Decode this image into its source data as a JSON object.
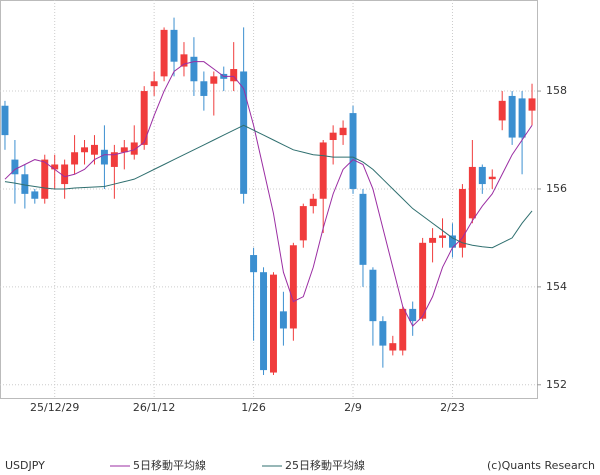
{
  "chart_data": {
    "type": "candlestick",
    "symbol": "USDJPY",
    "credit": "(c)Quants Research",
    "categories": [
      null,
      null,
      null,
      null,
      null,
      "25/12/29",
      null,
      null,
      null,
      null,
      null,
      null,
      null,
      null,
      null,
      "26/1/12",
      null,
      null,
      null,
      null,
      null,
      null,
      null,
      null,
      null,
      "1/26",
      null,
      null,
      null,
      null,
      null,
      null,
      null,
      null,
      null,
      "2/9",
      null,
      null,
      null,
      null,
      null,
      null,
      null,
      null,
      null,
      "2/23",
      null,
      null,
      null,
      null,
      null,
      null,
      null,
      null
    ],
    "open": [
      157.7,
      156.6,
      156.3,
      155.95,
      155.8,
      156.4,
      156.1,
      156.5,
      156.75,
      156.7,
      156.8,
      156.45,
      156.75,
      156.7,
      156.9,
      158.1,
      158.3,
      159.25,
      158.5,
      158.7,
      158.2,
      158.15,
      158.35,
      158.2,
      158.4,
      154.65,
      154.3,
      152.25,
      153.5,
      153.15,
      154.95,
      155.65,
      155.8,
      157.0,
      157.1,
      157.55,
      155.9,
      154.35,
      153.3,
      152.7,
      152.7,
      153.55,
      153.35,
      154.9,
      155.0,
      155.05,
      154.8,
      155.4,
      156.45,
      156.2,
      157.4,
      157.9,
      157.85,
      157.6
    ],
    "high": [
      157.8,
      157.0,
      156.5,
      156.0,
      156.7,
      156.7,
      156.6,
      157.1,
      157.0,
      157.1,
      157.3,
      156.9,
      157.0,
      157.3,
      158.1,
      158.4,
      159.3,
      159.5,
      159.0,
      159.1,
      158.4,
      158.4,
      158.5,
      159.0,
      159.3,
      154.8,
      154.4,
      154.3,
      153.9,
      154.9,
      155.7,
      155.9,
      157.0,
      157.3,
      157.4,
      157.7,
      156.0,
      154.4,
      153.4,
      153.0,
      153.6,
      153.7,
      155.0,
      155.2,
      155.4,
      155.3,
      156.1,
      157.0,
      156.5,
      156.4,
      158.0,
      158.0,
      158.0,
      158.15
    ],
    "low": [
      156.8,
      155.7,
      155.6,
      155.7,
      155.7,
      156.0,
      155.8,
      156.3,
      156.5,
      156.5,
      156.0,
      155.8,
      156.4,
      156.6,
      156.8,
      157.9,
      158.2,
      158.3,
      158.3,
      157.9,
      157.6,
      157.5,
      158.0,
      158.0,
      155.7,
      152.9,
      152.2,
      152.2,
      152.8,
      152.9,
      154.8,
      155.5,
      155.1,
      156.5,
      156.9,
      155.9,
      154.0,
      152.8,
      152.35,
      152.6,
      152.6,
      153.0,
      153.3,
      154.5,
      154.8,
      154.6,
      154.6,
      155.3,
      155.9,
      156.0,
      157.2,
      156.9,
      156.3,
      157.3
    ],
    "close": [
      157.1,
      156.3,
      155.9,
      155.8,
      156.6,
      156.5,
      156.5,
      156.75,
      156.85,
      156.9,
      156.5,
      156.75,
      156.85,
      156.95,
      158.0,
      158.2,
      159.25,
      158.6,
      158.75,
      158.2,
      157.9,
      158.3,
      158.25,
      158.45,
      155.9,
      154.3,
      152.3,
      154.25,
      153.15,
      154.85,
      155.65,
      155.8,
      156.95,
      157.15,
      157.25,
      156.0,
      154.45,
      153.3,
      152.8,
      152.85,
      153.55,
      153.3,
      154.9,
      155.0,
      155.05,
      154.8,
      156.0,
      156.45,
      156.1,
      156.25,
      157.8,
      157.05,
      157.05,
      157.85
    ],
    "up_color": "#f03c3c",
    "down_color": "#3b8fd0",
    "series": [
      {
        "name": "5日移動平均線",
        "color": "#9b2ea3",
        "values": [
          156.2,
          156.4,
          156.5,
          156.6,
          156.55,
          156.4,
          156.25,
          156.3,
          156.4,
          156.6,
          156.7,
          156.7,
          156.75,
          156.8,
          156.95,
          157.5,
          158.0,
          158.4,
          158.55,
          158.6,
          158.6,
          158.45,
          158.3,
          158.3,
          158.05,
          157.3,
          156.4,
          155.5,
          154.3,
          153.7,
          153.8,
          154.4,
          155.2,
          155.9,
          156.4,
          156.6,
          156.5,
          156.0,
          155.2,
          154.4,
          153.6,
          153.2,
          153.4,
          153.8,
          154.4,
          154.8,
          155.0,
          155.35,
          155.65,
          155.9,
          156.3,
          156.7,
          157.0,
          157.3
        ]
      },
      {
        "name": "25日移動平均線",
        "color": "#2f6f6f",
        "values": [
          156.15,
          156.12,
          156.08,
          156.05,
          156.02,
          156.0,
          156.0,
          156.02,
          156.03,
          156.04,
          156.05,
          156.1,
          156.15,
          156.2,
          156.3,
          156.4,
          156.5,
          156.6,
          156.7,
          156.8,
          156.9,
          157.0,
          157.1,
          157.2,
          157.3,
          157.2,
          157.1,
          157.0,
          156.9,
          156.8,
          156.75,
          156.7,
          156.68,
          156.65,
          156.65,
          156.65,
          156.55,
          156.4,
          156.2,
          156.0,
          155.8,
          155.6,
          155.45,
          155.3,
          155.15,
          155.0,
          154.9,
          154.85,
          154.82,
          154.8,
          154.9,
          155.0,
          155.3,
          155.55
        ]
      }
    ],
    "ylim": [
      151.73,
      159.86
    ],
    "yticks": [
      152,
      154,
      156,
      158
    ],
    "grid": true
  }
}
